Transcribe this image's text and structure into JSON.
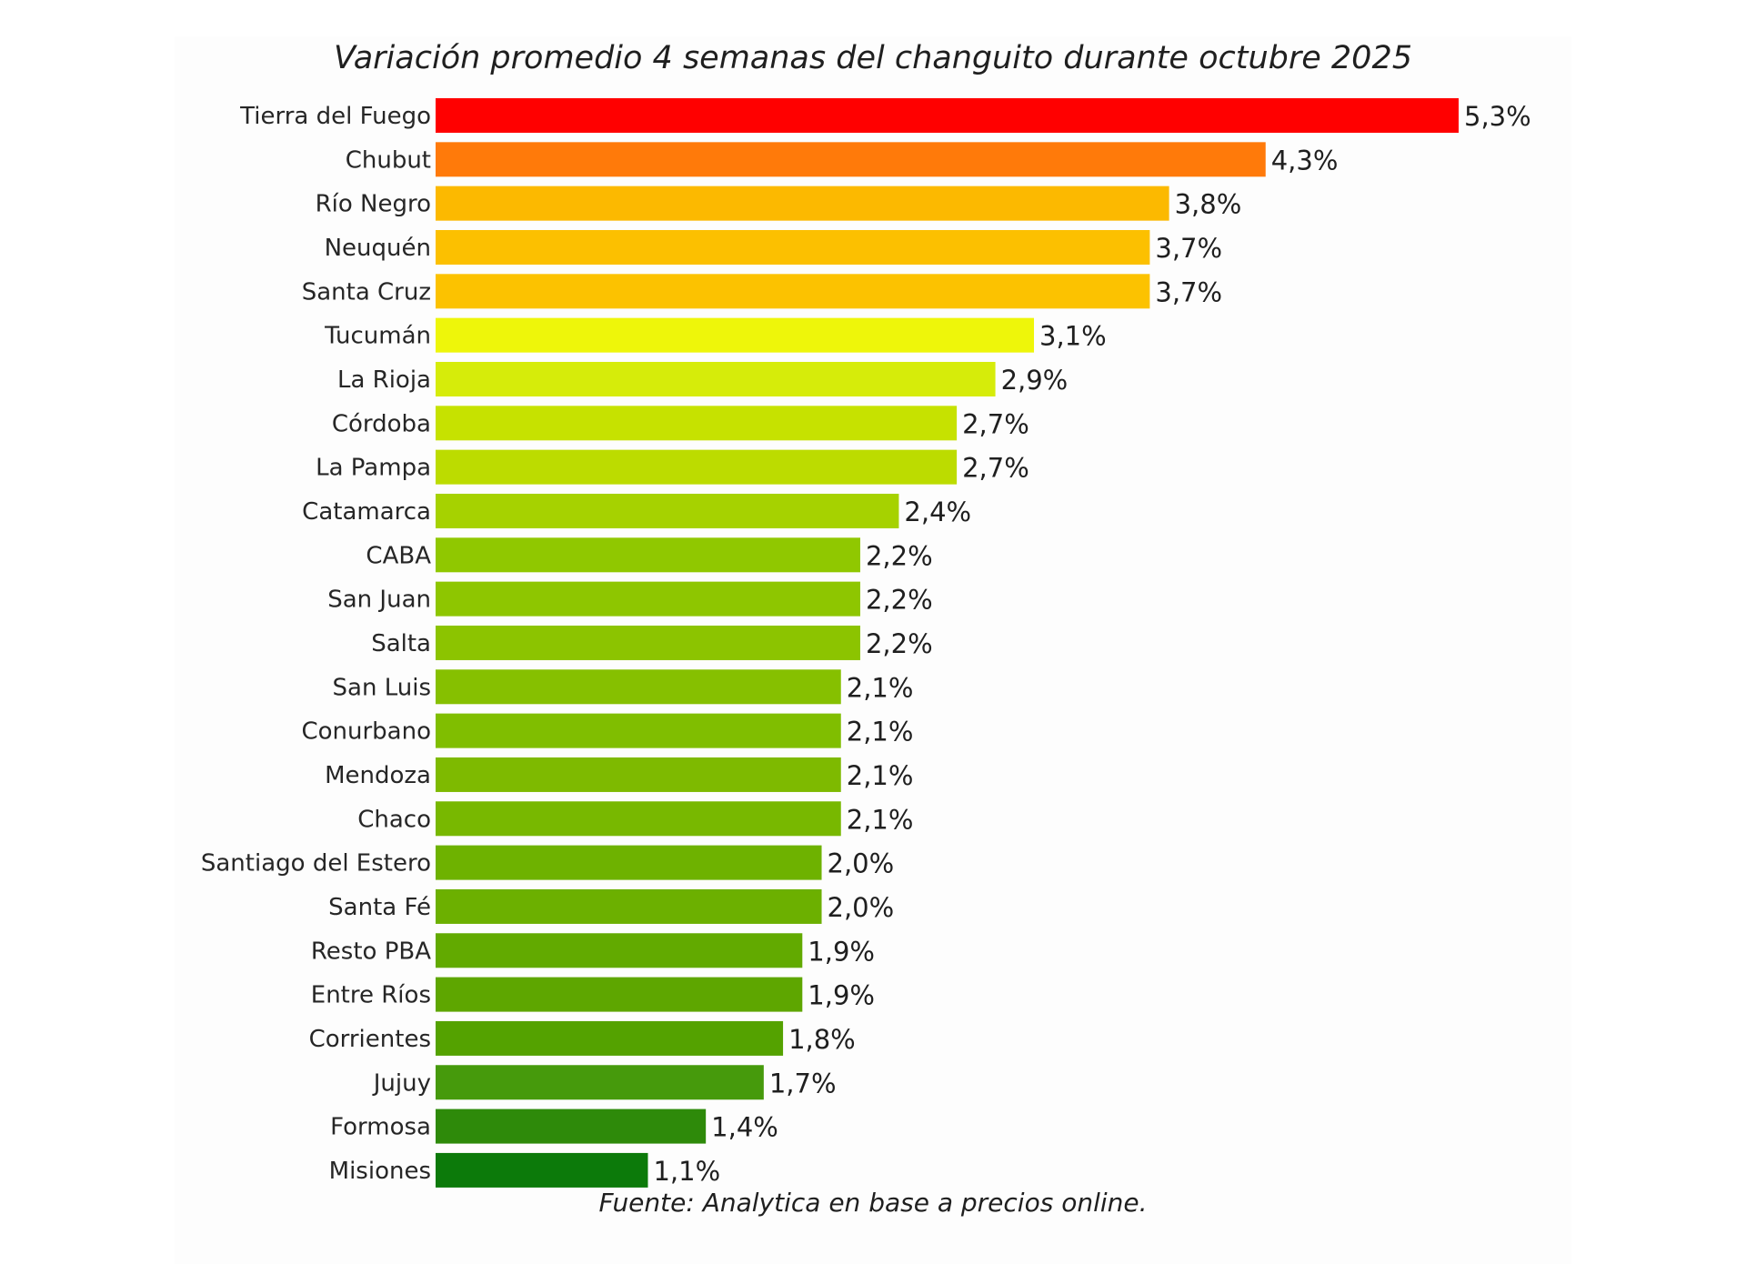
{
  "chart_data": {
    "type": "bar",
    "orientation": "horizontal",
    "title": "Variación promedio 4 semanas del changuito durante octubre 2025",
    "xlabel": "",
    "ylabel": "",
    "unit": "%",
    "decimal_separator": ",",
    "xlim": [
      0,
      5.3
    ],
    "grid": false,
    "legend": "none",
    "categories": [
      "Tierra del Fuego",
      "Chubut",
      "Río Negro",
      "Neuquén",
      "Santa Cruz",
      "Tucumán",
      "La Rioja",
      "Córdoba",
      "La Pampa",
      "Catamarca",
      "CABA",
      "San Juan",
      "Salta",
      "San Luis",
      "Conurbano",
      "Mendoza",
      "Chaco",
      "Santiago del Estero",
      "Santa Fé",
      "Resto PBA",
      "Entre Ríos",
      "Corrientes",
      "Jujuy",
      "Formosa",
      "Misiones"
    ],
    "values": [
      5.3,
      4.3,
      3.8,
      3.7,
      3.7,
      3.1,
      2.9,
      2.7,
      2.7,
      2.4,
      2.2,
      2.2,
      2.2,
      2.1,
      2.1,
      2.1,
      2.1,
      2.0,
      2.0,
      1.9,
      1.9,
      1.8,
      1.7,
      1.4,
      1.1
    ],
    "value_labels": [
      "5,3%",
      "4,3%",
      "3,8%",
      "3,7%",
      "3,7%",
      "3,1%",
      "2,9%",
      "2,7%",
      "2,7%",
      "2,4%",
      "2,2%",
      "2,2%",
      "2,2%",
      "2,1%",
      "2,1%",
      "2,1%",
      "2,1%",
      "2,0%",
      "2,0%",
      "1,9%",
      "1,9%",
      "1,8%",
      "1,7%",
      "1,4%",
      "1,1%"
    ],
    "colors": [
      "#ff0000",
      "#ff7a0a",
      "#fcb900",
      "#fcc000",
      "#fcc200",
      "#eef60a",
      "#d6ec0a",
      "#c6e200",
      "#bcdc00",
      "#a6d200",
      "#90c800",
      "#8ec600",
      "#8cc400",
      "#86c000",
      "#80be00",
      "#7eba00",
      "#78b800",
      "#6eb200",
      "#6cb000",
      "#62aa00",
      "#5ea600",
      "#54a200",
      "#469a0c",
      "#2e8a0a",
      "#0c7a0a"
    ],
    "source": "Fuente: Analytica en base a precios online."
  }
}
